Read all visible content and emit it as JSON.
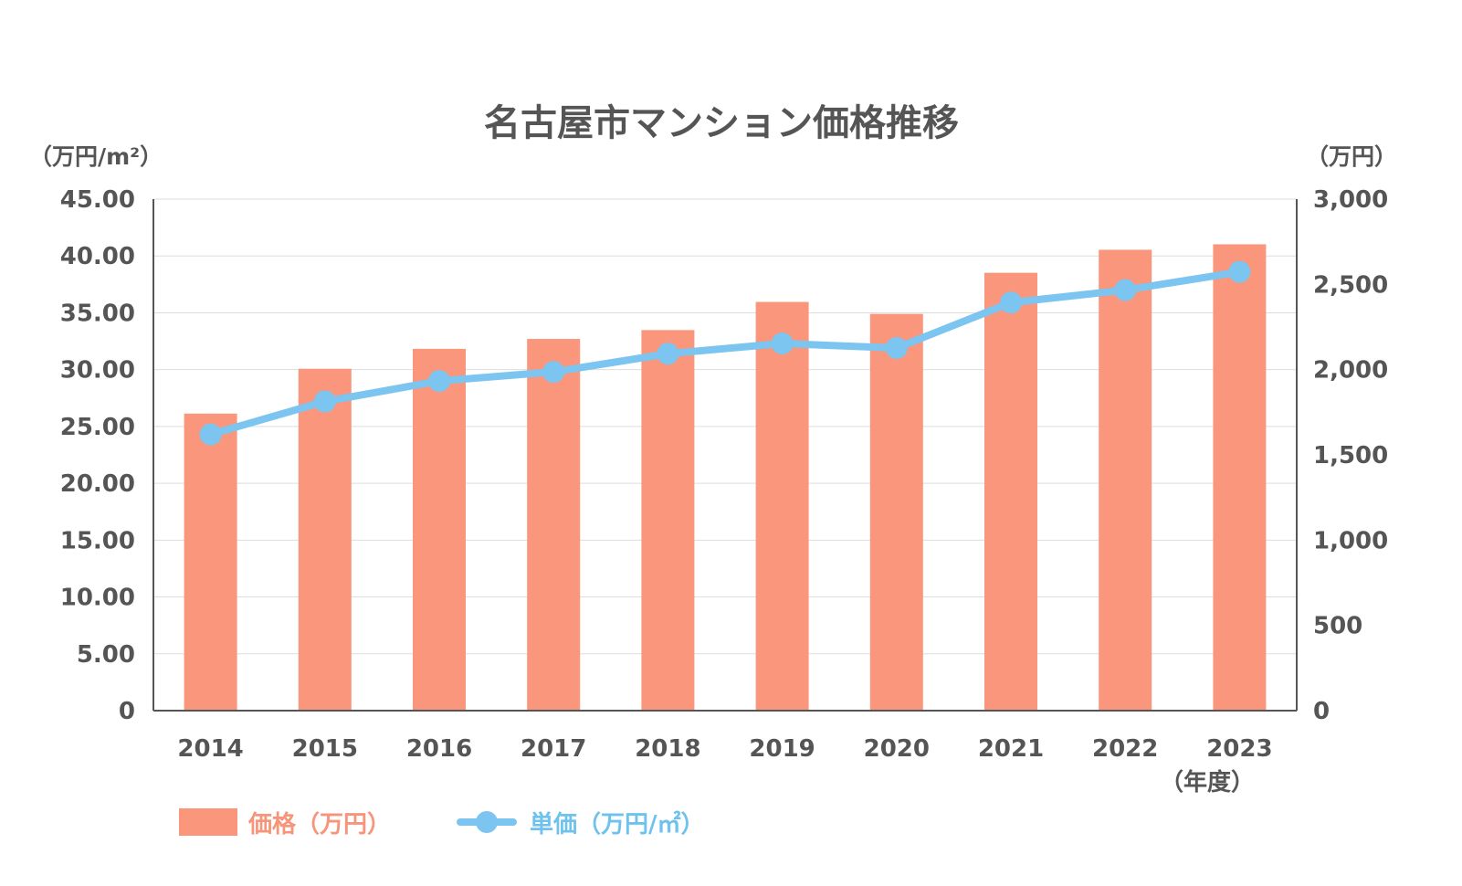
{
  "chart_data": {
    "type": "bar",
    "title": "名古屋市マンション価格推移",
    "left_axis_unit": "（万円/m²）",
    "right_axis_unit": "（万円）",
    "x_unit": "（年度）",
    "categories": [
      "2014",
      "2015",
      "2016",
      "2017",
      "2018",
      "2019",
      "2020",
      "2021",
      "2022",
      "2023"
    ],
    "left_ticks": [
      "0",
      "5.00",
      "10.00",
      "15.00",
      "20.00",
      "25.00",
      "30.00",
      "35.00",
      "40.00",
      "45.00"
    ],
    "right_ticks": [
      "0",
      "500",
      "1,000",
      "1,500",
      "2,000",
      "2,500",
      "3,000"
    ],
    "ylim_left": [
      0,
      45
    ],
    "ylim_right": [
      0,
      3000
    ],
    "grid": true,
    "series": [
      {
        "name": "価格（万円）",
        "type": "bar",
        "axis": "right",
        "color": "#f9967b",
        "values": [
          1742,
          2005,
          2122,
          2180,
          2232,
          2397,
          2327,
          2568,
          2703,
          2735
        ]
      },
      {
        "name": "単価（万円/㎡）",
        "type": "line",
        "axis": "left",
        "color": "#7cc5f0",
        "values": [
          24.3,
          27.2,
          29.0,
          29.8,
          31.4,
          32.3,
          31.9,
          35.9,
          37.0,
          38.6
        ]
      }
    ],
    "legend_position": "bottom-left"
  }
}
